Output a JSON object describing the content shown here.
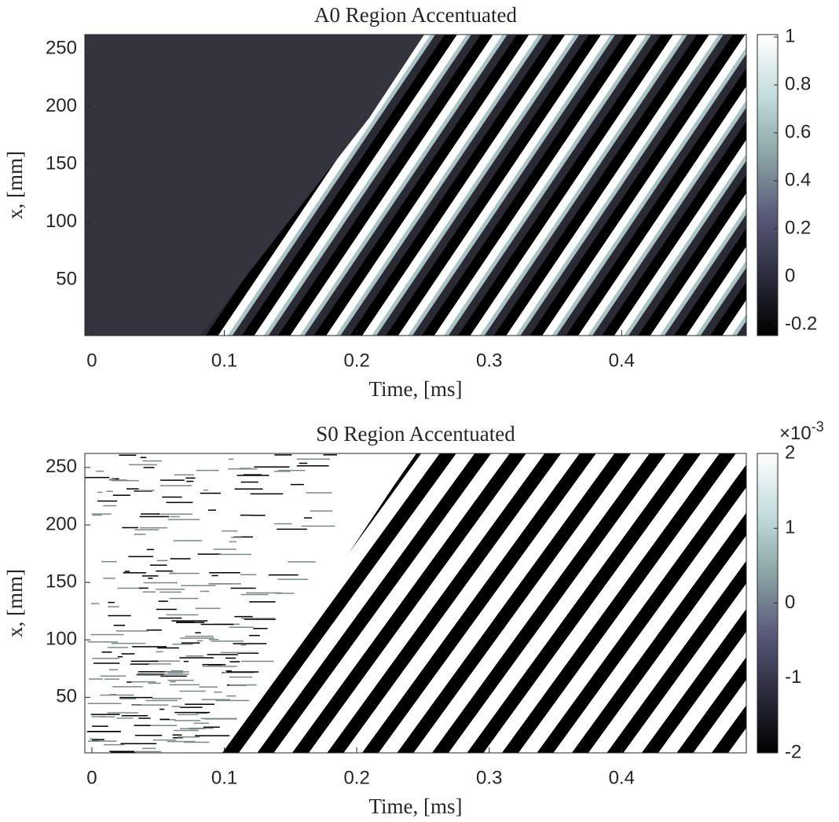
{
  "chart_data": [
    {
      "type": "heatmap",
      "title": "A0 Region Accentuated",
      "xlabel": "Time, [ms]",
      "ylabel": "x, [mm]",
      "xlim": [
        -0.0053,
        0.4941
      ],
      "xticks": [
        0,
        0.1,
        0.2,
        0.3,
        0.4
      ],
      "ylim": [
        1.7,
        262.2
      ],
      "yticks": [
        50,
        100,
        150,
        200,
        250
      ],
      "colorbar": {
        "clim": [
          -0.246,
          1.01
        ],
        "ticks": [
          -0.2,
          0,
          0.2,
          0.4,
          0.6,
          0.8,
          1
        ],
        "colormap": [
          "#000000",
          "#2c2c3d",
          "#5a5a7a",
          "#8aa5a5",
          "#c4dddd",
          "#ffffff"
        ]
      }
    },
    {
      "type": "heatmap",
      "title": "S0 Region Accentuated",
      "xlabel": "Time, [ms]",
      "ylabel": "x, [mm]",
      "xlim": [
        -0.0053,
        0.4941
      ],
      "xticks": [
        0,
        0.1,
        0.2,
        0.3,
        0.4
      ],
      "ylim": [
        1.7,
        262.2
      ],
      "yticks": [
        50,
        100,
        150,
        200,
        250
      ],
      "colorbar": {
        "clim": [
          -0.002,
          0.002
        ],
        "ticks": [
          {
            "value": -0.002,
            "label": "-2"
          },
          {
            "value": -0.001,
            "label": "-1"
          },
          {
            "value": 0,
            "label": "0"
          },
          {
            "value": 0.001,
            "label": "1"
          },
          {
            "value": 0.002,
            "label": "2"
          }
        ],
        "multiplier": {
          "base": "×10",
          "power": "-3"
        },
        "colormap": [
          "#000000",
          "#2c2c3d",
          "#5a5a7a",
          "#8aa5a5",
          "#c4dddd",
          "#ffffff"
        ]
      }
    }
  ]
}
